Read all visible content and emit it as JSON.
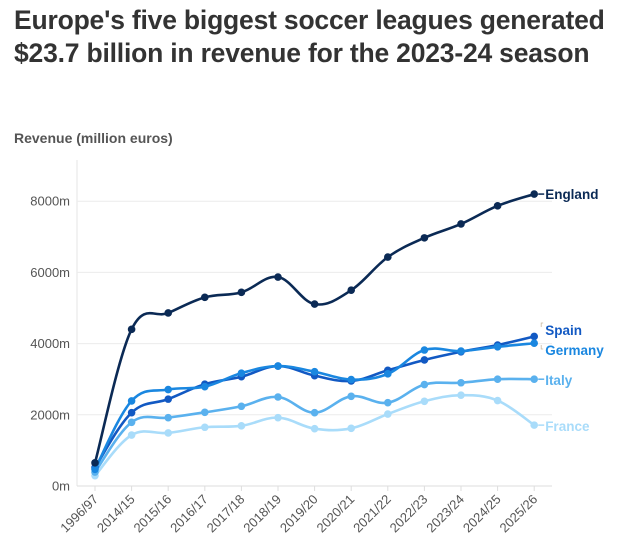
{
  "chart_data": {
    "type": "line",
    "title": "Europe's five biggest soccer leagues generated $23.7 billion in revenue for the 2023-24 season",
    "ylabel": "Revenue (million euros)",
    "xlabel": "",
    "ylim": [
      0,
      9000
    ],
    "yticks": [
      0,
      2000,
      4000,
      6000,
      8000
    ],
    "ytick_labels": [
      "0m",
      "2000m",
      "4000m",
      "6000m",
      "8000m"
    ],
    "grid": true,
    "legend": "inline-right",
    "x": [
      "1996/97",
      "2014/15",
      "2015/16",
      "2016/17",
      "2017/18",
      "2018/19",
      "2019/20",
      "2020/21",
      "2021/22",
      "2022/23",
      "2023/24",
      "2024/25",
      "2025/26"
    ],
    "series": [
      {
        "name": "England",
        "color": "#0b2a55",
        "values": [
          650,
          4400,
          4860,
          5300,
          5440,
          5870,
          5110,
          5500,
          6430,
          6970,
          7360,
          7870,
          8200
        ]
      },
      {
        "name": "Spain",
        "color": "#1259c3",
        "values": [
          520,
          2060,
          2440,
          2860,
          3070,
          3370,
          3100,
          2950,
          3250,
          3540,
          3770,
          3960,
          4200
        ]
      },
      {
        "name": "Germany",
        "color": "#1a87e0",
        "values": [
          470,
          2390,
          2710,
          2790,
          3170,
          3370,
          3210,
          2990,
          3150,
          3820,
          3790,
          3910,
          4010
        ]
      },
      {
        "name": "Italy",
        "color": "#5ab1ee",
        "values": [
          390,
          1790,
          1920,
          2070,
          2240,
          2500,
          2060,
          2520,
          2340,
          2850,
          2900,
          3000,
          3000
        ]
      },
      {
        "name": "France",
        "color": "#a9dcfa",
        "values": [
          290,
          1430,
          1490,
          1650,
          1690,
          1920,
          1610,
          1620,
          2020,
          2380,
          2550,
          2400,
          1710
        ]
      }
    ]
  }
}
